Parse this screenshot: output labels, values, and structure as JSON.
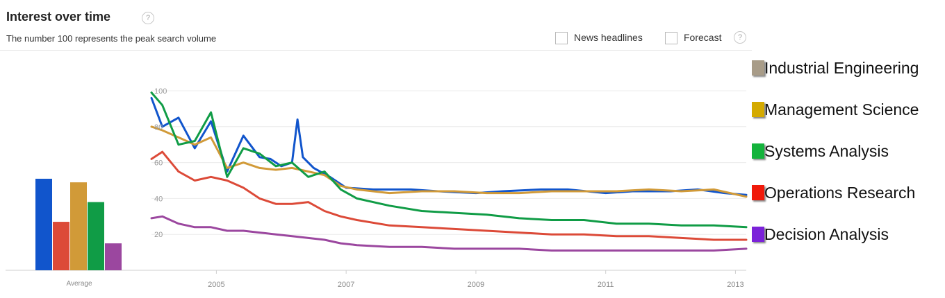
{
  "header": {
    "title": "Interest over time",
    "subtitle": "The number 100 represents the peak search volume",
    "help_glyph": "?",
    "news_label": "News headlines",
    "forecast_label": "Forecast"
  },
  "chart_data": {
    "type": "line",
    "title": "Interest over time",
    "subtitle": "The number 100 represents the peak search volume",
    "x_ticks": [
      "2005",
      "2007",
      "2009",
      "2011",
      "2013"
    ],
    "y_ticks": [
      20,
      40,
      60,
      80,
      100
    ],
    "ylim": [
      0,
      100
    ],
    "xlim": [
      "2004-01",
      "2013-03"
    ],
    "grid": true,
    "average_label": "Average",
    "legend": {
      "position": "right",
      "entries": [
        {
          "label": "Industrial Engineering",
          "color": "#a89c88"
        },
        {
          "label": "Management Science",
          "color": "#d4aa00"
        },
        {
          "label": "Systems Analysis",
          "color": "#14b33c"
        },
        {
          "label": "Operations Research",
          "color": "#f01a0a"
        },
        {
          "label": "Decision Analysis",
          "color": "#7b22d9"
        }
      ]
    },
    "series": [
      {
        "color": "#1155cc",
        "average": 51,
        "points": [
          [
            "2004-01",
            96
          ],
          [
            "2004-03",
            80
          ],
          [
            "2004-06",
            85
          ],
          [
            "2004-09",
            68
          ],
          [
            "2004-12",
            83
          ],
          [
            "2005-03",
            55
          ],
          [
            "2005-06",
            75
          ],
          [
            "2005-09",
            63
          ],
          [
            "2005-11",
            62
          ],
          [
            "2006-01",
            58
          ],
          [
            "2006-03",
            60
          ],
          [
            "2006-04",
            84
          ],
          [
            "2006-05",
            63
          ],
          [
            "2006-07",
            57
          ],
          [
            "2006-10",
            52
          ],
          [
            "2007-01",
            46
          ],
          [
            "2007-06",
            45
          ],
          [
            "2008-01",
            45
          ],
          [
            "2008-06",
            44
          ],
          [
            "2009-01",
            43
          ],
          [
            "2009-06",
            44
          ],
          [
            "2010-01",
            45
          ],
          [
            "2010-06",
            45
          ],
          [
            "2011-01",
            43
          ],
          [
            "2011-06",
            44
          ],
          [
            "2012-01",
            44
          ],
          [
            "2012-06",
            45
          ],
          [
            "2012-11",
            43
          ],
          [
            "2013-03",
            42
          ]
        ]
      },
      {
        "color": "#dc4a38",
        "average": 27,
        "points": [
          [
            "2004-01",
            62
          ],
          [
            "2004-03",
            66
          ],
          [
            "2004-06",
            55
          ],
          [
            "2004-09",
            50
          ],
          [
            "2004-12",
            52
          ],
          [
            "2005-03",
            50
          ],
          [
            "2005-06",
            46
          ],
          [
            "2005-09",
            40
          ],
          [
            "2005-12",
            37
          ],
          [
            "2006-03",
            37
          ],
          [
            "2006-06",
            38
          ],
          [
            "2006-09",
            33
          ],
          [
            "2006-12",
            30
          ],
          [
            "2007-03",
            28
          ],
          [
            "2007-09",
            25
          ],
          [
            "2008-03",
            24
          ],
          [
            "2008-09",
            23
          ],
          [
            "2009-03",
            22
          ],
          [
            "2009-09",
            21
          ],
          [
            "2010-03",
            20
          ],
          [
            "2010-09",
            20
          ],
          [
            "2011-03",
            19
          ],
          [
            "2011-09",
            19
          ],
          [
            "2012-03",
            18
          ],
          [
            "2012-09",
            17
          ],
          [
            "2013-03",
            17
          ]
        ]
      },
      {
        "color": "#d19a38",
        "average": 49,
        "points": [
          [
            "2004-01",
            80
          ],
          [
            "2004-03",
            78
          ],
          [
            "2004-06",
            74
          ],
          [
            "2004-09",
            70
          ],
          [
            "2004-12",
            74
          ],
          [
            "2005-03",
            57
          ],
          [
            "2005-06",
            60
          ],
          [
            "2005-09",
            57
          ],
          [
            "2005-12",
            56
          ],
          [
            "2006-03",
            57
          ],
          [
            "2006-06",
            55
          ],
          [
            "2006-09",
            53
          ],
          [
            "2006-12",
            47
          ],
          [
            "2007-03",
            45
          ],
          [
            "2007-09",
            43
          ],
          [
            "2008-03",
            44
          ],
          [
            "2008-09",
            44
          ],
          [
            "2009-03",
            43
          ],
          [
            "2009-09",
            43
          ],
          [
            "2010-03",
            44
          ],
          [
            "2010-09",
            44
          ],
          [
            "2011-03",
            44
          ],
          [
            "2011-09",
            45
          ],
          [
            "2012-03",
            44
          ],
          [
            "2012-09",
            45
          ],
          [
            "2013-03",
            41
          ]
        ]
      },
      {
        "color": "#109c46",
        "average": 38,
        "points": [
          [
            "2004-01",
            99
          ],
          [
            "2004-03",
            92
          ],
          [
            "2004-06",
            70
          ],
          [
            "2004-09",
            72
          ],
          [
            "2004-12",
            88
          ],
          [
            "2005-03",
            52
          ],
          [
            "2005-06",
            68
          ],
          [
            "2005-09",
            65
          ],
          [
            "2005-12",
            58
          ],
          [
            "2006-03",
            60
          ],
          [
            "2006-06",
            52
          ],
          [
            "2006-09",
            55
          ],
          [
            "2006-12",
            45
          ],
          [
            "2007-03",
            40
          ],
          [
            "2007-09",
            36
          ],
          [
            "2008-03",
            33
          ],
          [
            "2008-09",
            32
          ],
          [
            "2009-03",
            31
          ],
          [
            "2009-09",
            29
          ],
          [
            "2010-03",
            28
          ],
          [
            "2010-09",
            28
          ],
          [
            "2011-03",
            26
          ],
          [
            "2011-09",
            26
          ],
          [
            "2012-03",
            25
          ],
          [
            "2012-09",
            25
          ],
          [
            "2013-03",
            24
          ]
        ]
      },
      {
        "color": "#9b479f",
        "average": 15,
        "points": [
          [
            "2004-01",
            29
          ],
          [
            "2004-03",
            30
          ],
          [
            "2004-06",
            26
          ],
          [
            "2004-09",
            24
          ],
          [
            "2004-12",
            24
          ],
          [
            "2005-03",
            22
          ],
          [
            "2005-06",
            22
          ],
          [
            "2005-09",
            21
          ],
          [
            "2005-12",
            20
          ],
          [
            "2006-03",
            19
          ],
          [
            "2006-06",
            18
          ],
          [
            "2006-09",
            17
          ],
          [
            "2006-12",
            15
          ],
          [
            "2007-03",
            14
          ],
          [
            "2007-09",
            13
          ],
          [
            "2008-03",
            13
          ],
          [
            "2008-09",
            12
          ],
          [
            "2009-03",
            12
          ],
          [
            "2009-09",
            12
          ],
          [
            "2010-03",
            11
          ],
          [
            "2010-09",
            11
          ],
          [
            "2011-03",
            11
          ],
          [
            "2011-09",
            11
          ],
          [
            "2012-03",
            11
          ],
          [
            "2012-09",
            11
          ],
          [
            "2013-03",
            12
          ]
        ]
      }
    ]
  }
}
